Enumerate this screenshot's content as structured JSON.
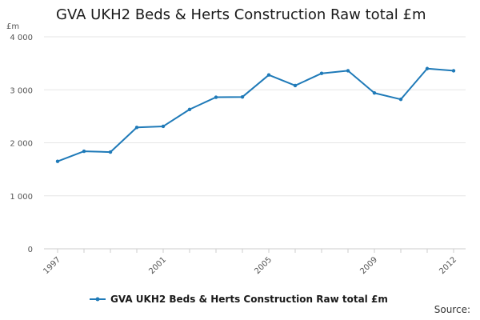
{
  "chart_data": {
    "type": "line",
    "title": "GVA UKH2 Beds & Herts Construction Raw total £m",
    "ylabel": "£m",
    "xlabel": "",
    "ylim": [
      0,
      4000
    ],
    "yticks": [
      0,
      1000,
      2000,
      3000,
      4000
    ],
    "ytick_labels": [
      "0",
      "1 000",
      "2 000",
      "3 000",
      "4 000"
    ],
    "xticks": [
      1997,
      2001,
      2005,
      2009,
      2012
    ],
    "xtick_labels": [
      "1997",
      "2001",
      "2005",
      "2009",
      "2012"
    ],
    "x": [
      1997,
      1998,
      1999,
      2000,
      2001,
      2002,
      2003,
      2004,
      2005,
      2006,
      2007,
      2008,
      2009,
      2010,
      2011,
      2012
    ],
    "series": [
      {
        "name": "GVA UKH2 Beds & Herts Construction Raw total £m",
        "color": "#1f7ab8",
        "values": [
          1650,
          1840,
          1825,
          2290,
          2310,
          2630,
          2860,
          2865,
          3280,
          3080,
          3310,
          3360,
          2940,
          2820,
          3400,
          3360
        ]
      }
    ],
    "grid": true,
    "legend_position": "bottom-center"
  },
  "source_label": "Source:"
}
